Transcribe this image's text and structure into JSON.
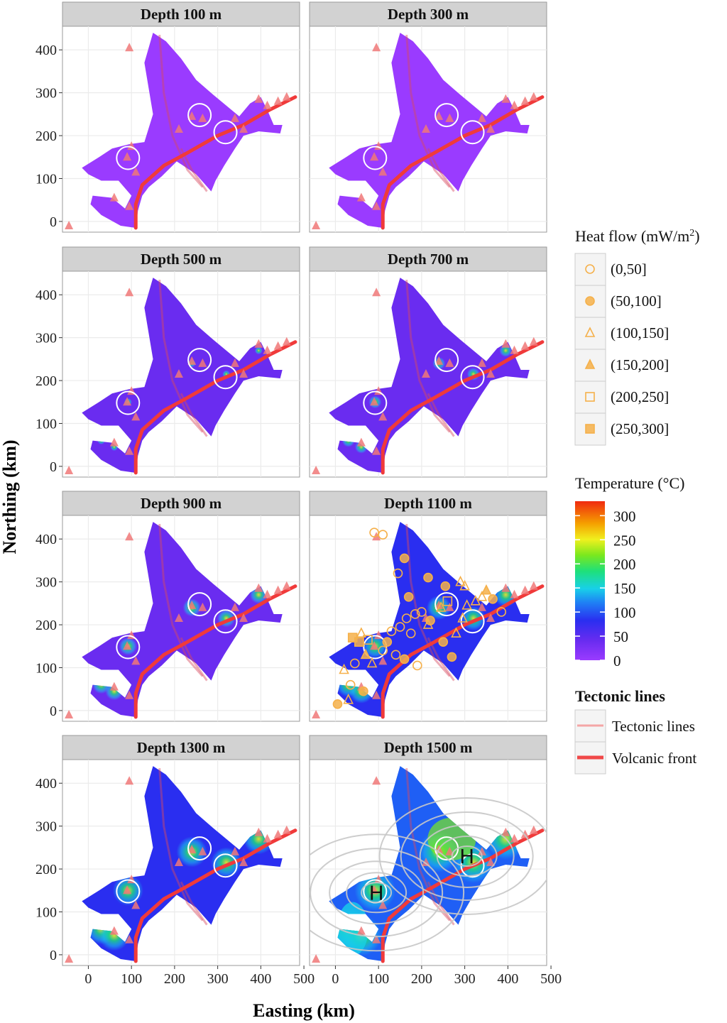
{
  "chart_data": {
    "type": "heatmap",
    "title": "",
    "xlabel": "Easting (km)",
    "ylabel": "Northing (km)",
    "xlim": [
      -60,
      490
    ],
    "ylim": [
      -25,
      455
    ],
    "x_ticks": [
      0,
      100,
      200,
      300,
      400,
      500
    ],
    "x_tick_labels": [
      "0",
      "100",
      "200",
      "300",
      "400",
      "500"
    ],
    "y_ticks": [
      0,
      100,
      200,
      300,
      400
    ],
    "y_tick_labels": [
      "0",
      "100",
      "200",
      "300",
      "400"
    ],
    "grid": true,
    "panels": [
      {
        "label": "Depth 100 m",
        "depth_m": 100,
        "level": 0.08
      },
      {
        "label": "Depth 300 m",
        "depth_m": 300,
        "level": 0.1
      },
      {
        "label": "Depth 500 m",
        "depth_m": 500,
        "level": 0.14
      },
      {
        "label": "Depth 700 m",
        "depth_m": 700,
        "level": 0.18
      },
      {
        "label": "Depth 900 m",
        "depth_m": 900,
        "level": 0.22
      },
      {
        "label": "Depth 1100 m",
        "depth_m": 1100,
        "level": 0.27,
        "heat_flow_points": true
      },
      {
        "label": "Depth 1300 m",
        "depth_m": 1300,
        "level": 0.32
      },
      {
        "label": "Depth 1500 m",
        "depth_m": 1500,
        "level": 0.4,
        "highs": true
      }
    ],
    "outline": [
      [
        110,
        -15
      ],
      [
        75,
        -10
      ],
      [
        30,
        15
      ],
      [
        5,
        40
      ],
      [
        10,
        60
      ],
      [
        55,
        55
      ],
      [
        85,
        30
      ],
      [
        100,
        60
      ],
      [
        70,
        95
      ],
      [
        30,
        95
      ],
      [
        0,
        110
      ],
      [
        -15,
        125
      ],
      [
        25,
        150
      ],
      [
        55,
        170
      ],
      [
        95,
        180
      ],
      [
        130,
        185
      ],
      [
        150,
        250
      ],
      [
        140,
        310
      ],
      [
        130,
        370
      ],
      [
        150,
        440
      ],
      [
        180,
        420
      ],
      [
        215,
        380
      ],
      [
        250,
        330
      ],
      [
        290,
        295
      ],
      [
        320,
        270
      ],
      [
        350,
        245
      ],
      [
        375,
        275
      ],
      [
        400,
        290
      ],
      [
        415,
        260
      ],
      [
        430,
        225
      ],
      [
        450,
        225
      ],
      [
        445,
        205
      ],
      [
        395,
        210
      ],
      [
        360,
        200
      ],
      [
        340,
        170
      ],
      [
        315,
        130
      ],
      [
        295,
        95
      ],
      [
        285,
        70
      ],
      [
        250,
        110
      ],
      [
        205,
        140
      ],
      [
        170,
        105
      ],
      [
        140,
        80
      ],
      [
        125,
        60
      ],
      [
        115,
        25
      ]
    ],
    "volcanic_front": [
      [
        110,
        -15
      ],
      [
        110,
        40
      ],
      [
        125,
        85
      ],
      [
        175,
        130
      ],
      [
        230,
        160
      ],
      [
        300,
        200
      ],
      [
        360,
        225
      ],
      [
        420,
        260
      ],
      [
        480,
        290
      ]
    ],
    "tectonic_lines": [
      [
        [
          165,
          435
        ],
        [
          175,
          300
        ],
        [
          195,
          200
        ],
        [
          230,
          120
        ],
        [
          265,
          80
        ]
      ],
      [
        [
          215,
          170
        ],
        [
          240,
          120
        ],
        [
          275,
          70
        ]
      ]
    ],
    "volcanoes": [
      [
        95,
        405
      ],
      [
        -45,
        -10
      ],
      [
        240,
        245
      ],
      [
        265,
        240
      ],
      [
        210,
        215
      ],
      [
        360,
        215
      ],
      [
        415,
        270
      ],
      [
        440,
        280
      ],
      [
        460,
        290
      ],
      [
        395,
        285
      ],
      [
        340,
        240
      ],
      [
        90,
        150
      ],
      [
        110,
        115
      ],
      [
        60,
        55
      ],
      [
        95,
        35
      ],
      [
        100,
        175
      ]
    ],
    "white_circles": [
      [
        258,
        248
      ],
      [
        318,
        208
      ],
      [
        92,
        148
      ]
    ],
    "heat_flow_classes": [
      {
        "label": "(0,50]",
        "shape": "circle",
        "filled": false
      },
      {
        "label": "(50,100]",
        "shape": "circle",
        "filled": true
      },
      {
        "label": "(100,150]",
        "shape": "triangle",
        "filled": false
      },
      {
        "label": "(150,200]",
        "shape": "triangle",
        "filled": true
      },
      {
        "label": "(200,250]",
        "shape": "square",
        "filled": false
      },
      {
        "label": "(250,300]",
        "shape": "square",
        "filled": true
      }
    ],
    "heat_flow_points": [
      [
        90,
        415,
        0
      ],
      [
        110,
        410,
        0
      ],
      [
        160,
        355,
        1
      ],
      [
        145,
        320,
        0
      ],
      [
        215,
        310,
        1
      ],
      [
        255,
        290,
        1
      ],
      [
        170,
        265,
        1
      ],
      [
        185,
        225,
        0
      ],
      [
        200,
        230,
        0
      ],
      [
        220,
        210,
        1
      ],
      [
        165,
        215,
        0
      ],
      [
        150,
        195,
        0
      ],
      [
        175,
        180,
        0
      ],
      [
        130,
        185,
        0
      ],
      [
        120,
        160,
        1
      ],
      [
        110,
        140,
        0
      ],
      [
        140,
        130,
        0
      ],
      [
        160,
        120,
        1
      ],
      [
        190,
        105,
        0
      ],
      [
        250,
        160,
        1
      ],
      [
        270,
        125,
        1
      ],
      [
        295,
        215,
        2
      ],
      [
        305,
        245,
        2
      ],
      [
        325,
        255,
        2
      ],
      [
        340,
        265,
        2
      ],
      [
        350,
        280,
        3
      ],
      [
        365,
        260,
        1
      ],
      [
        385,
        230,
        0
      ],
      [
        260,
        255,
        4
      ],
      [
        245,
        240,
        2
      ],
      [
        215,
        200,
        2
      ],
      [
        280,
        180,
        2
      ],
      [
        60,
        180,
        2
      ],
      [
        40,
        170,
        5
      ],
      [
        55,
        160,
        5
      ],
      [
        70,
        130,
        3
      ],
      [
        85,
        110,
        2
      ],
      [
        20,
        95,
        2
      ],
      [
        35,
        60,
        0
      ],
      [
        65,
        45,
        1
      ],
      [
        30,
        25,
        2
      ],
      [
        5,
        15,
        1
      ],
      [
        45,
        110,
        0
      ],
      [
        75,
        165,
        4
      ],
      [
        290,
        300,
        2
      ],
      [
        300,
        290,
        2
      ]
    ],
    "contour_highs": [
      [
        95,
        145
      ],
      [
        305,
        230
      ]
    ],
    "temperature_legend": {
      "title": "Temperature (°C)",
      "ticks": [
        0,
        50,
        100,
        150,
        200,
        250,
        300
      ],
      "range": [
        0,
        330
      ]
    },
    "heat_flow_legend_title": "Heat flow (mW/m",
    "heat_flow_legend_exponent": "2",
    "heat_flow_legend_title_end": ")",
    "tectonic_legend": {
      "title": "Tectonic lines",
      "items": [
        {
          "label": "Tectonic lines",
          "color": "#f4a6a6"
        },
        {
          "label": "Volcanic front",
          "color": "#f04848"
        }
      ]
    },
    "colors": {
      "strip": "#d2d2d2",
      "grid": "#ebebeb",
      "marker": "#f5b04a",
      "volcano": "#f07878",
      "contour": "#c8c8c8",
      "colorscale": [
        "#9a3bff",
        "#6a2cf0",
        "#2a2ef0",
        "#1f5ff5",
        "#18c8f0",
        "#1ee08a",
        "#6ee81e",
        "#f0f01e",
        "#f5a000",
        "#f23a10"
      ]
    }
  }
}
